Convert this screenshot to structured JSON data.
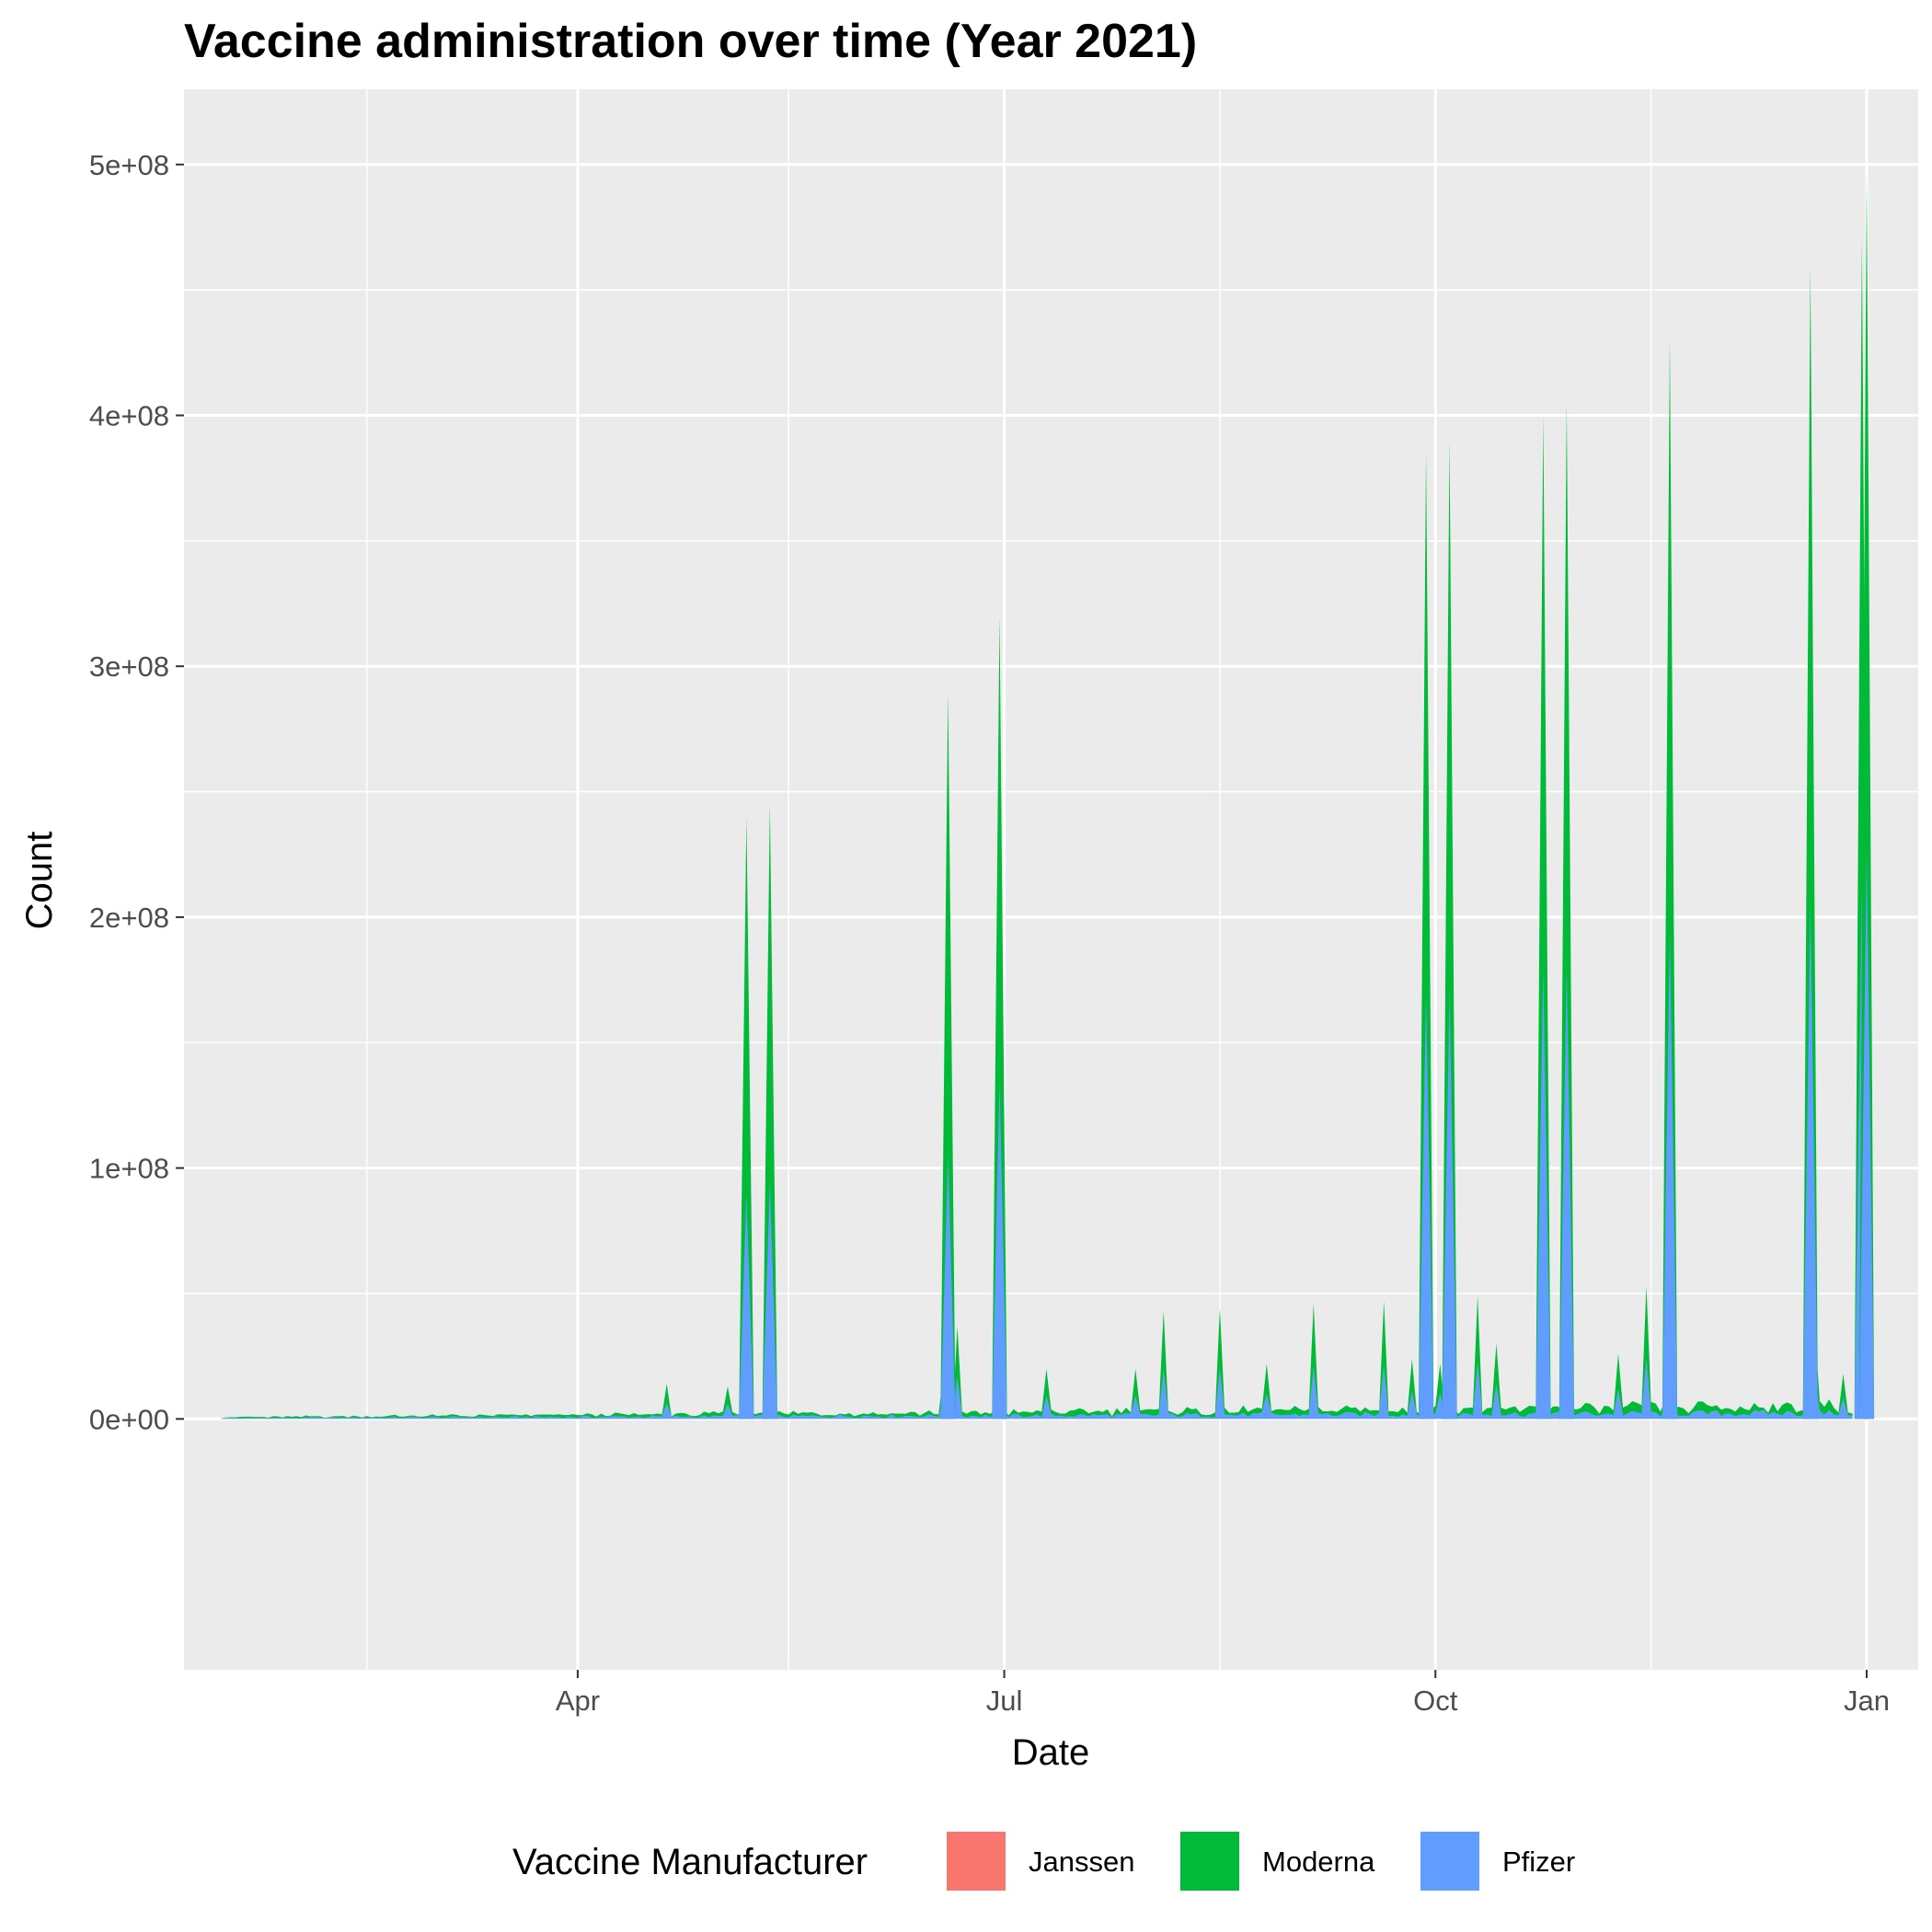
{
  "chart_data": {
    "type": "area",
    "stacked": true,
    "title": "Vaccine administration over time (Year 2021)",
    "xlabel": "Date",
    "ylabel": "Count",
    "x_range": [
      "2021-01-07",
      "2022-01-12"
    ],
    "ylim": [
      -100000000,
      530000000
    ],
    "x_ticks": [
      {
        "date": "2021-04-01",
        "label": "Apr"
      },
      {
        "date": "2021-07-01",
        "label": "Jul"
      },
      {
        "date": "2021-10-01",
        "label": "Oct"
      },
      {
        "date": "2022-01-01",
        "label": "Jan"
      }
    ],
    "x_minor_ticks": [
      "2021-02-15",
      "2021-05-16",
      "2021-08-16",
      "2021-11-16"
    ],
    "y_ticks": [
      {
        "value": 0,
        "label": "0e+00"
      },
      {
        "value": 100000000,
        "label": "1e+08"
      },
      {
        "value": 200000000,
        "label": "2e+08"
      },
      {
        "value": 300000000,
        "label": "3e+08"
      },
      {
        "value": 400000000,
        "label": "4e+08"
      },
      {
        "value": 500000000,
        "label": "5e+08"
      }
    ],
    "grid": true,
    "legend": {
      "title": "Vaccine Manufacturer",
      "position": "bottom",
      "entries": [
        {
          "name": "Janssen",
          "color": "#F8766D"
        },
        {
          "name": "Moderna",
          "color": "#00BA38"
        },
        {
          "name": "Pfizer",
          "color": "#619CFF"
        }
      ]
    },
    "date_start": "2021-01-15",
    "date_end": "2021-12-29",
    "spikes": [
      {
        "date": "2021-05-07",
        "moderna": 240000000,
        "pfizer": 90000000
      },
      {
        "date": "2021-05-12",
        "moderna": 245000000,
        "pfizer": 95000000
      },
      {
        "date": "2021-06-19",
        "moderna": 290000000,
        "pfizer": 105000000
      },
      {
        "date": "2021-06-30",
        "moderna": 320000000,
        "pfizer": 135000000
      },
      {
        "date": "2021-09-29",
        "moderna": 385000000,
        "pfizer": 170000000
      },
      {
        "date": "2021-10-04",
        "moderna": 390000000,
        "pfizer": 170000000
      },
      {
        "date": "2021-10-24",
        "moderna": 400000000,
        "pfizer": 180000000
      },
      {
        "date": "2021-10-29",
        "moderna": 405000000,
        "pfizer": 180000000
      },
      {
        "date": "2021-11-20",
        "moderna": 430000000,
        "pfizer": 195000000
      },
      {
        "date": "2021-12-20",
        "moderna": 460000000,
        "pfizer": 205000000
      },
      {
        "date": "2021-12-31",
        "moderna": 470000000,
        "pfizer": 210000000
      },
      {
        "date": "2022-01-01",
        "moderna": 495000000,
        "pfizer": 225000000
      }
    ],
    "minor_peaks": [
      {
        "date": "2021-04-20",
        "moderna": 14000000
      },
      {
        "date": "2021-05-03",
        "moderna": 13000000
      },
      {
        "date": "2021-06-18",
        "moderna": 18000000
      },
      {
        "date": "2021-06-21",
        "moderna": 37000000
      },
      {
        "date": "2021-07-10",
        "moderna": 20000000
      },
      {
        "date": "2021-07-29",
        "moderna": 20000000
      },
      {
        "date": "2021-08-04",
        "moderna": 43000000
      },
      {
        "date": "2021-08-16",
        "moderna": 44000000
      },
      {
        "date": "2021-08-26",
        "moderna": 22000000
      },
      {
        "date": "2021-09-05",
        "moderna": 46000000
      },
      {
        "date": "2021-09-20",
        "moderna": 47000000
      },
      {
        "date": "2021-09-26",
        "moderna": 24000000
      },
      {
        "date": "2021-10-02",
        "moderna": 22000000
      },
      {
        "date": "2021-10-10",
        "moderna": 49000000
      },
      {
        "date": "2021-10-14",
        "moderna": 30000000
      },
      {
        "date": "2021-11-15",
        "moderna": 53000000
      },
      {
        "date": "2021-11-09",
        "moderna": 26000000
      },
      {
        "date": "2021-12-21",
        "moderna": 34000000
      },
      {
        "date": "2021-12-27",
        "moderna": 18000000
      }
    ]
  }
}
